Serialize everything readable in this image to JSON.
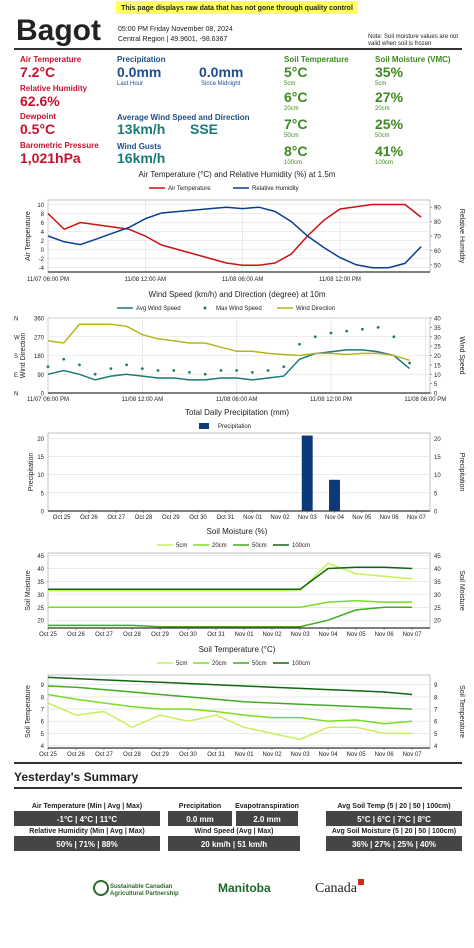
{
  "header": {
    "station": "Bagot",
    "banner": "This page displays raw data that has not gone through quality control",
    "datetime": "05:00 PM Friday November 08, 2024",
    "location": "Central Region | 49.9601, -98.6367",
    "note": [
      "Note: Soil moisture values are not",
      "valid when soil is frozen"
    ]
  },
  "current": {
    "air_temperature": {
      "label": "Air Temperature",
      "value": "7.2°C"
    },
    "relative_humidity": {
      "label": "Relative Humidity",
      "value": "62.6%"
    },
    "dewpoint": {
      "label": "Dewpoint",
      "value": "0.5°C"
    },
    "pressure": {
      "label": "Barometric Pressure",
      "value": "1,021hPa"
    },
    "precipitation": {
      "label": "Precipitation",
      "last_hour": "0.0mm",
      "last_hour_label": "Last Hour",
      "since_midnight": "0.0mm",
      "since_midnight_label": "Since Midnight"
    },
    "wind": {
      "label": "Average Wind Speed and Direction",
      "speed": "13km/h",
      "direction": "SSE"
    },
    "gusts": {
      "label": "Wind Gusts",
      "value": "16km/h"
    },
    "soil_temperature": {
      "label": "Soil Temperature",
      "readings": [
        {
          "value": "5°C",
          "depth": "5cm"
        },
        {
          "value": "6°C",
          "depth": "20cm"
        },
        {
          "value": "7°C",
          "depth": "50cm"
        },
        {
          "value": "8°C",
          "depth": "100cm"
        }
      ]
    },
    "soil_moisture": {
      "label": "Soil Moisture (VMC)",
      "readings": [
        {
          "value": "35%",
          "depth": "5cm"
        },
        {
          "value": "27%",
          "depth": "20cm"
        },
        {
          "value": "25%",
          "depth": "50cm"
        },
        {
          "value": "41%",
          "depth": "100cm"
        }
      ]
    }
  },
  "chart_data": [
    {
      "type": "line",
      "title": "Air Temperature (°C) and Relative Humidity (%) at 1.5m",
      "y_label": "Air Temperature",
      "y2_label": "Relative Humidity",
      "categories": [
        "11/07 06:00 PM",
        "11/07 07:00 PM",
        "11/07 08:00 PM",
        "11/07 09:00 PM",
        "11/07 10:00 PM",
        "11/07 11:00 PM",
        "11/08 12:00 AM",
        "11/08 01:00 AM",
        "11/08 02:00 AM",
        "11/08 03:00 AM",
        "11/08 04:00 AM",
        "11/08 05:00 AM",
        "11/08 06:00 AM",
        "11/08 07:00 AM",
        "11/08 08:00 AM",
        "11/08 09:00 AM",
        "11/08 10:00 AM",
        "11/08 11:00 AM",
        "11/08 12:00 PM",
        "11/08 01:00 PM",
        "11/08 02:00 PM",
        "11/08 03:00 PM",
        "11/08 04:00 PM",
        "11/08 05:00 PM"
      ],
      "xticks": [
        "11/07 06:00 PM",
        "11/08 12:00 AM",
        "11/08 06:00 AM",
        "11/08 12:00 PM"
      ],
      "ylim": [
        -5,
        11
      ],
      "yticks": [
        -4,
        -2,
        0,
        2,
        4,
        6,
        8,
        10
      ],
      "y2lim": [
        45,
        95
      ],
      "y2ticks": [
        50,
        60,
        70,
        80,
        90
      ],
      "grid": true,
      "series": [
        {
          "name": "Air Temperature",
          "color": "#cc1111",
          "values": [
            8,
            4.5,
            6,
            5.5,
            5,
            4.5,
            3,
            1,
            0,
            -1,
            -2,
            -3,
            -3.5,
            -3.5,
            -3,
            -1,
            3,
            6.5,
            9,
            9.5,
            10,
            10,
            10,
            7.2
          ]
        },
        {
          "name": "Relative Humidity",
          "color": "#0b3d91",
          "axis": "y2",
          "values": [
            70,
            66,
            64,
            68,
            72,
            76,
            82,
            86,
            87,
            88,
            89,
            90,
            89,
            90,
            87,
            80,
            70,
            62,
            55,
            50,
            48,
            48,
            51,
            62.6
          ]
        }
      ]
    },
    {
      "type": "line",
      "title": "Wind Speed (km/h) and Direction (degree) at 10m",
      "y_label": "Wind Direction",
      "y2_label": "Wind Speed",
      "categories": [
        "11/07 06:00 PM",
        "11/07 07:00 PM",
        "11/07 08:00 PM",
        "11/07 09:00 PM",
        "11/07 10:00 PM",
        "11/07 11:00 PM",
        "11/08 12:00 AM",
        "11/08 01:00 AM",
        "11/08 02:00 AM",
        "11/08 03:00 AM",
        "11/08 04:00 AM",
        "11/08 05:00 AM",
        "11/08 06:00 AM",
        "11/08 07:00 AM",
        "11/08 08:00 AM",
        "11/08 09:00 AM",
        "11/08 10:00 AM",
        "11/08 11:00 AM",
        "11/08 12:00 PM",
        "11/08 01:00 PM",
        "11/08 02:00 PM",
        "11/08 03:00 PM",
        "11/08 04:00 PM",
        "11/08 05:00 PM",
        "11/08 06:00 PM"
      ],
      "xticks": [
        "11/07 06:00 PM",
        "11/08 12:00 AM",
        "11/08 06:00 AM",
        "11/08 12:00 PM",
        "11/08 06:00 PM"
      ],
      "ylim": [
        0,
        360
      ],
      "yticks": [
        0,
        90,
        180,
        270,
        360
      ],
      "ytick_directions": [
        "N",
        "E",
        "S",
        "W",
        "N"
      ],
      "y2lim": [
        0,
        40
      ],
      "y2ticks": [
        0,
        5,
        10,
        15,
        20,
        25,
        30,
        35,
        40
      ],
      "grid": true,
      "series": [
        {
          "name": "Avg Wind Speed",
          "color": "#1a7a7a",
          "axis": "y2",
          "values": [
            10,
            12,
            10,
            7,
            9,
            10,
            9,
            8,
            8,
            7,
            7,
            8,
            8,
            7,
            8,
            9,
            18,
            21,
            22,
            23,
            23,
            22,
            20,
            13,
            null
          ]
        },
        {
          "name": "Max Wind Speed",
          "color": "#1a7a7a",
          "axis": "y2",
          "style": "markers",
          "values": [
            14,
            18,
            15,
            10,
            13,
            15,
            13,
            12,
            12,
            11,
            10,
            12,
            12,
            11,
            12,
            14,
            26,
            30,
            32,
            33,
            34,
            35,
            30,
            16,
            null
          ]
        },
        {
          "name": "Wind Direction",
          "color": "#b5b520",
          "values": [
            250,
            240,
            330,
            330,
            330,
            320,
            280,
            260,
            250,
            240,
            240,
            220,
            200,
            200,
            190,
            185,
            180,
            190,
            190,
            185,
            190,
            190,
            180,
            157,
            null
          ]
        }
      ]
    },
    {
      "type": "bar",
      "title": "Total Daily Precipitation (mm)",
      "y_label": "Precipitation",
      "mirror_y": true,
      "categories": [
        "Oct 25",
        "Oct 26",
        "Oct 27",
        "Oct 28",
        "Oct 29",
        "Oct 30",
        "Oct 31",
        "Nov 01",
        "Nov 02",
        "Nov 03",
        "Nov 04",
        "Nov 05",
        "Nov 06",
        "Nov 07"
      ],
      "ylim": [
        0,
        21.5
      ],
      "yticks": [
        0,
        5,
        10,
        15,
        20
      ],
      "grid": true,
      "series": [
        {
          "name": "Precipitation",
          "color": "#0b3a7a",
          "values": [
            0,
            0,
            0,
            0,
            0,
            0,
            0,
            0,
            0,
            20.8,
            8.6,
            0,
            0,
            0
          ]
        }
      ]
    },
    {
      "type": "line",
      "title": "Soil Moisture (%)",
      "y_label": "Soil Moisture",
      "mirror_y": true,
      "categories": [
        "Oct 25",
        "Oct 26",
        "Oct 27",
        "Oct 28",
        "Oct 29",
        "Oct 30",
        "Oct 31",
        "Nov 01",
        "Nov 02",
        "Nov 03",
        "Nov 04",
        "Nov 05",
        "Nov 06",
        "Nov 07"
      ],
      "ylim": [
        17,
        46
      ],
      "yticks": [
        20,
        25,
        30,
        35,
        40,
        45
      ],
      "grid": true,
      "series": [
        {
          "name": "5cm",
          "color": "#c8f05a",
          "values": [
            31.5,
            31.5,
            31.5,
            31.5,
            31.5,
            31.5,
            31.5,
            31.5,
            31.5,
            31.5,
            42,
            38,
            37,
            36
          ]
        },
        {
          "name": "20cm",
          "color": "#77dd22",
          "values": [
            25,
            25,
            25,
            25,
            25,
            25,
            25,
            25,
            25,
            25,
            27,
            27.5,
            27,
            27
          ]
        },
        {
          "name": "50cm",
          "color": "#44aa22",
          "values": [
            18,
            18,
            18,
            18,
            17.5,
            17.5,
            17.5,
            17.5,
            17.5,
            17.5,
            20,
            24,
            25,
            25
          ]
        },
        {
          "name": "100cm",
          "color": "#116611",
          "values": [
            32,
            32,
            32,
            32,
            32,
            32,
            32,
            32,
            32,
            32,
            40,
            40.5,
            40.5,
            40
          ]
        }
      ]
    },
    {
      "type": "line",
      "title": "Soil Temperature (°C)",
      "y_label": "Soil Temperature",
      "mirror_y": true,
      "categories": [
        "Oct 25",
        "Oct 26",
        "Oct 27",
        "Oct 28",
        "Oct 29",
        "Oct 30",
        "Oct 31",
        "Nov 01",
        "Nov 02",
        "Nov 03",
        "Nov 04",
        "Nov 05",
        "Nov 06",
        "Nov 07"
      ],
      "ylim": [
        3.8,
        9.8
      ],
      "yticks": [
        4,
        5,
        6,
        7,
        8,
        9
      ],
      "grid": true,
      "series": [
        {
          "name": "5cm",
          "color": "#c8f05a",
          "values": [
            7.5,
            6.5,
            6.8,
            5.5,
            6.5,
            6,
            6.5,
            5.5,
            5,
            4.5,
            5.5,
            5.5,
            5,
            5
          ]
        },
        {
          "name": "20cm",
          "color": "#77dd22",
          "values": [
            8.2,
            7.8,
            7.5,
            7.2,
            7,
            7,
            6.8,
            6.5,
            6.3,
            6.3,
            6,
            6.1,
            5.8,
            6
          ]
        },
        {
          "name": "50cm",
          "color": "#44aa22",
          "values": [
            8.9,
            8.8,
            8.6,
            8.4,
            8.2,
            8,
            7.8,
            7.6,
            7.5,
            7.4,
            7.3,
            7.2,
            7.1,
            7
          ]
        },
        {
          "name": "100cm",
          "color": "#116611",
          "values": [
            9.6,
            9.5,
            9.4,
            9.3,
            9.2,
            9.1,
            9,
            8.9,
            8.8,
            8.7,
            8.6,
            8.5,
            8.4,
            8.2
          ]
        }
      ]
    }
  ],
  "summary": {
    "title": "Yesterday's Summary",
    "items": [
      {
        "label": "Air Temperature (Min | Avg | Max)",
        "value": "-1°C | 4°C | 11°C"
      },
      {
        "label": "Precipitation",
        "value": "0.0 mm"
      },
      {
        "label": "Evapotranspiration",
        "value": "2.0 mm"
      },
      {
        "label": "Avg Soil Temp (5 | 20 | 50 | 100cm)",
        "value": "5°C | 6°C | 7°C | 8°C"
      },
      {
        "label": "Relative Humidity (Min | Avg | Max)",
        "value": "50% | 71% | 88%"
      },
      {
        "label": "Wind Speed (Avg | Max)",
        "value": "20 km/h | 51 km/h"
      },
      {
        "label": "Avg Soil Moisture (5 | 20 | 50 | 100cm)",
        "value": "36% | 27% | 25% | 40%"
      }
    ]
  },
  "footer": {
    "logos": [
      "Sustainable Canadian",
      "Agricultural Partnership",
      "Manitoba",
      "Canada"
    ]
  }
}
